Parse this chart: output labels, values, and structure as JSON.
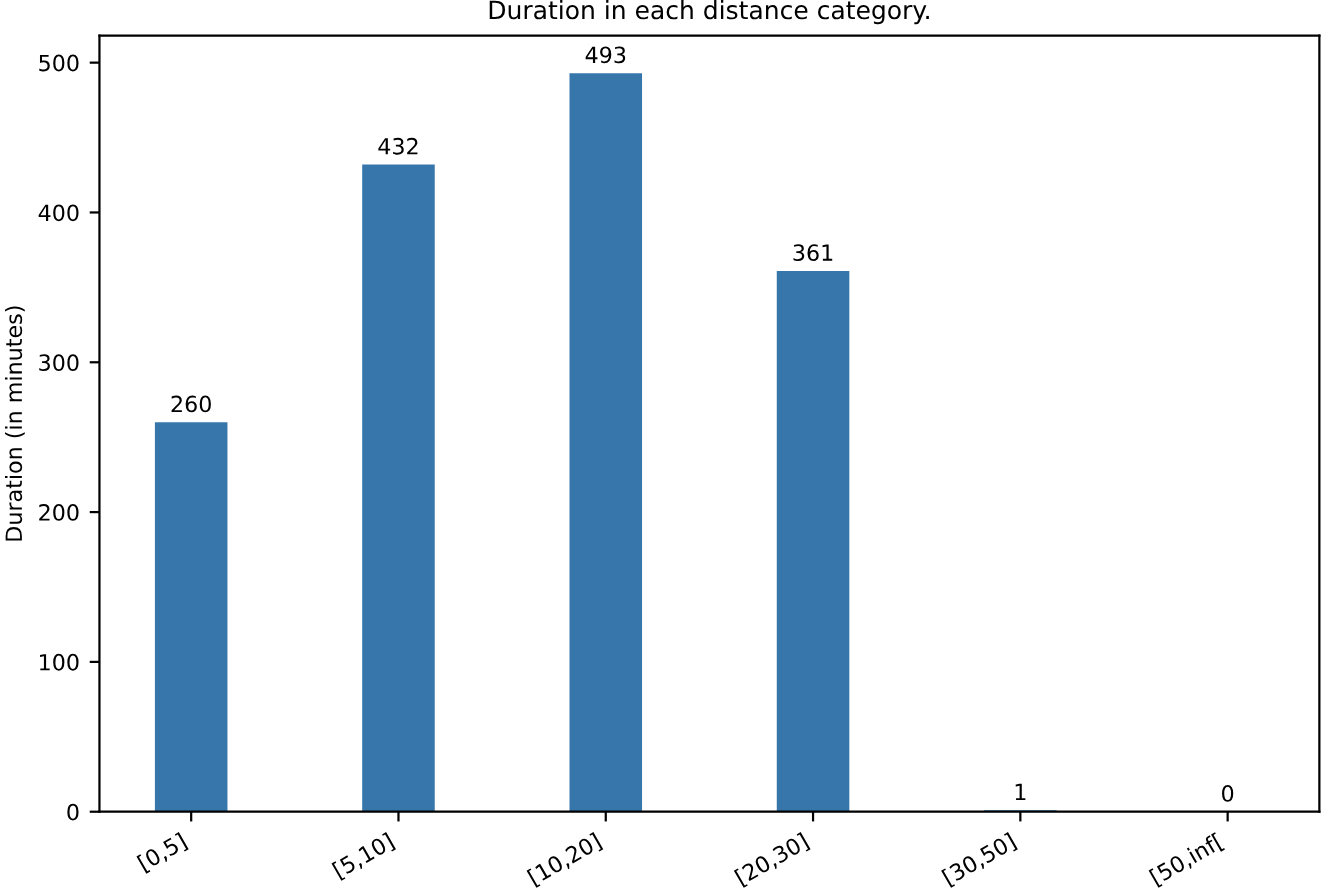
{
  "chart_data": {
    "type": "bar",
    "title": "Duration in each distance category.",
    "ylabel": "Duration (in minutes)",
    "categories": [
      "[0,5]",
      "[5,10]",
      "[10,20]",
      "[20,30]",
      "[30,50]",
      "[50,inf["
    ],
    "values": [
      260,
      432,
      493,
      361,
      1,
      0
    ],
    "color": "#3776ab",
    "ylim": [
      0,
      518
    ],
    "yticks": [
      0,
      100,
      200,
      300,
      400,
      500
    ],
    "data_labels": true,
    "grid": false
  }
}
